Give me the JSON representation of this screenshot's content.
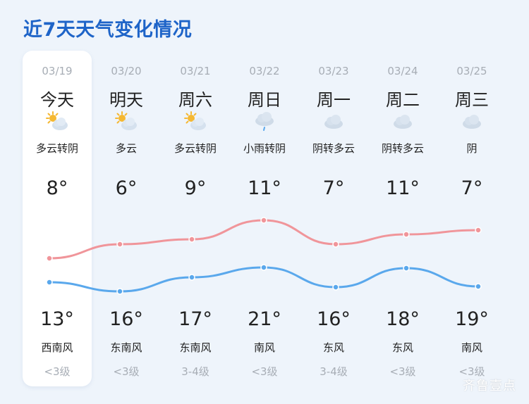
{
  "title": "近7天天气变化情况",
  "days": [
    {
      "date": "03/19",
      "day": "今天",
      "cond": "多云转阴",
      "icon": "partly-cloudy-icon",
      "hi": "8°",
      "lo": "13°",
      "wind": "西南风",
      "level": "<3级"
    },
    {
      "date": "03/20",
      "day": "明天",
      "cond": "多云",
      "icon": "partly-cloudy-icon",
      "hi": "6°",
      "lo": "16°",
      "wind": "东南风",
      "level": "<3级"
    },
    {
      "date": "03/21",
      "day": "周六",
      "cond": "多云转阴",
      "icon": "partly-cloudy-icon",
      "hi": "9°",
      "lo": "17°",
      "wind": "东南风",
      "level": "3-4级"
    },
    {
      "date": "03/22",
      "day": "周日",
      "cond": "小雨转阴",
      "icon": "light-rain-icon",
      "hi": "11°",
      "lo": "21°",
      "wind": "南风",
      "level": "<3级"
    },
    {
      "date": "03/23",
      "day": "周一",
      "cond": "阴转多云",
      "icon": "cloudy-icon",
      "hi": "7°",
      "lo": "16°",
      "wind": "东风",
      "level": "3-4级"
    },
    {
      "date": "03/24",
      "day": "周二",
      "cond": "阴转多云",
      "icon": "cloudy-icon",
      "hi": "11°",
      "lo": "18°",
      "wind": "东风",
      "level": "<3级"
    },
    {
      "date": "03/25",
      "day": "周三",
      "cond": "阴",
      "icon": "cloudy-icon",
      "hi": "7°",
      "lo": "19°",
      "wind": "南风",
      "level": "<3级"
    }
  ],
  "colors": {
    "title": "#1e64c8",
    "upper_line": "#f0959a",
    "lower_line": "#5aa8ec"
  },
  "watermark": "齐鲁壹点"
}
